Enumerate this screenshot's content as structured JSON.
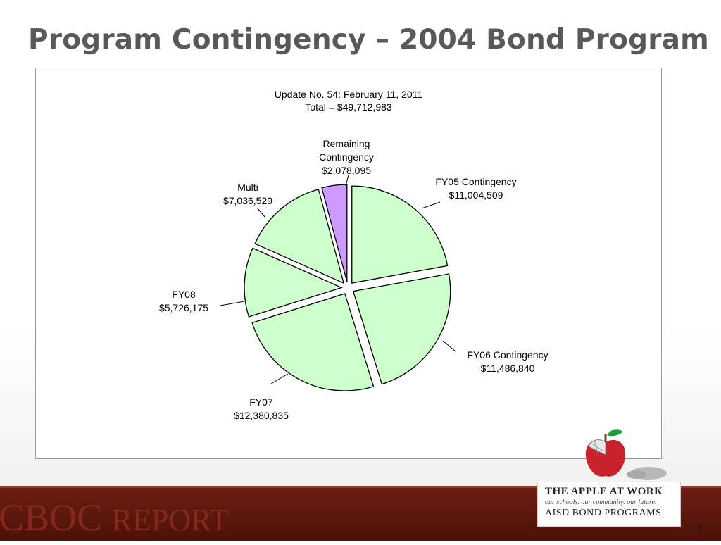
{
  "slide": {
    "title": "Program Contingency – 2004 Bond Program",
    "page_number": "3"
  },
  "footer": {
    "report_big": "CBOC",
    "report_small": "REPORT",
    "brand_line1": "THE APPLE AT WORK",
    "brand_line2": "our schools. our community. our future.",
    "brand_line3": "AISD BOND PROGRAMS"
  },
  "colors": {
    "slice_fill": "#ccffcc",
    "highlight_fill": "#cc99ff",
    "footer_band": "#5a160c"
  },
  "chart_data": {
    "type": "pie",
    "title": "Update No. 54: February 11, 2011",
    "subtitle": "Total = $49,712,983",
    "exploded": true,
    "slices": [
      {
        "name": "FY05 Contingency",
        "value": 11004509,
        "value_label": "$11,004,509",
        "color": "#ccffcc"
      },
      {
        "name": "FY06 Contingency",
        "value": 11486840,
        "value_label": "$11,486,840",
        "color": "#ccffcc"
      },
      {
        "name": "FY07",
        "value": 12380835,
        "value_label": "$12,380,835",
        "color": "#ccffcc"
      },
      {
        "name": "FY08",
        "value": 5726175,
        "value_label": "$5,726,175",
        "color": "#ccffcc"
      },
      {
        "name": "Multi",
        "value": 7036529,
        "value_label": "$7,036,529",
        "color": "#ccffcc"
      },
      {
        "name": "Remaining Contingency",
        "value": 2078095,
        "value_label": "$2,078,095",
        "color": "#cc99ff"
      }
    ]
  }
}
